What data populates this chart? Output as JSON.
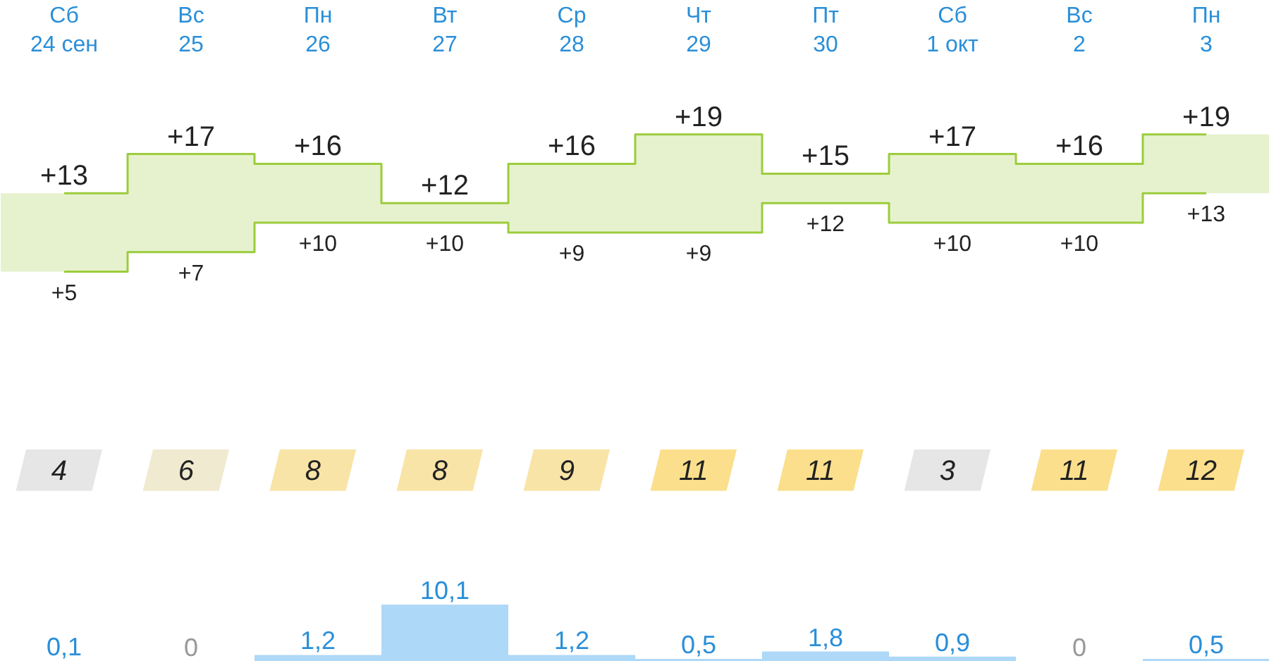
{
  "chart_data": [
    {
      "type": "step",
      "categories": [
        "Сб\n24 сен",
        "Вс\n25",
        "Пн\n26",
        "Вт\n27",
        "Ср\n28",
        "Чт\n29",
        "Пт\n30",
        "Сб\n1 окт",
        "Вс\n2",
        "Пн\n3"
      ],
      "series": [
        {
          "color": "#9ccc3c",
          "values": [
            13,
            17,
            16,
            12,
            16,
            19,
            15,
            17,
            16,
            19
          ],
          "value_labels": [
            "+13",
            "+17",
            "+16",
            "+12",
            "+16",
            "+19",
            "+15",
            "+17",
            "+16",
            "+19"
          ]
        },
        {
          "color": "#9ccc3c",
          "values": [
            5,
            7,
            10,
            10,
            9,
            9,
            12,
            10,
            10,
            13
          ],
          "value_labels": [
            "+5",
            "+7",
            "+10",
            "+10",
            "+9",
            "+9",
            "+12",
            "+10",
            "+10",
            "+13"
          ]
        }
      ],
      "tick_labels": "x"
    },
    {
      "type": "other",
      "categories": [
        null,
        null,
        null,
        null,
        null,
        null,
        null,
        null,
        null,
        null
      ],
      "values": [
        4,
        6,
        8,
        8,
        9,
        11,
        11,
        3,
        11,
        12
      ],
      "data_labels": true
    },
    {
      "type": "bar",
      "categories": [
        null,
        null,
        null,
        null,
        null,
        null,
        null,
        null,
        null,
        null
      ],
      "values": [
        0.1,
        0,
        1.2,
        10.1,
        1.2,
        0.5,
        1.8,
        0.9,
        0,
        0.5
      ],
      "value_labels": [
        "0,1",
        "0",
        "1,2",
        "10,1",
        "1,2",
        "0,5",
        "1,8",
        "0,9",
        "0",
        "0,5"
      ],
      "color": "#aed8f7",
      "tick_labels": false
    }
  ]
}
